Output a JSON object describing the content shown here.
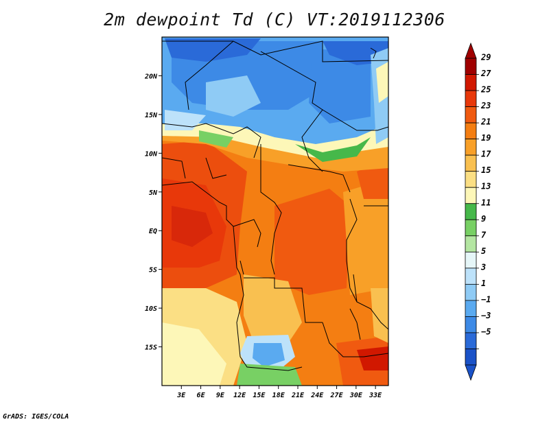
{
  "title": "2m dewpoint Td (C) VT:2019112306",
  "credit": "GrADS: IGES/COLA",
  "map": {
    "lat_labels": [
      "20N",
      "15N",
      "10N",
      "5N",
      "EQ",
      "5S",
      "10S",
      "15S"
    ],
    "lat_values": [
      20,
      15,
      10,
      5,
      0,
      -5,
      -10,
      -15
    ],
    "lon_labels": [
      "3E",
      "6E",
      "9E",
      "12E",
      "15E",
      "18E",
      "21E",
      "24E",
      "27E",
      "30E",
      "33E"
    ],
    "lon_values": [
      3,
      6,
      9,
      12,
      15,
      18,
      21,
      24,
      27,
      30,
      33
    ],
    "lon_range": [
      0,
      35
    ],
    "lat_range": [
      -20,
      25
    ]
  },
  "colorbar": {
    "labels": [
      "29",
      "27",
      "25",
      "23",
      "21",
      "19",
      "17",
      "15",
      "13",
      "11",
      "9",
      "7",
      "5",
      "3",
      "1",
      "−1",
      "−3",
      "−5"
    ],
    "colors": [
      "#a00000",
      "#d11800",
      "#e8380a",
      "#f05a10",
      "#f47e12",
      "#f8a028",
      "#f9c050",
      "#fbdf84",
      "#fdf7b8",
      "#46b84a",
      "#78d064",
      "#b4e6a2",
      "#e6f6f8",
      "#bde2fa",
      "#8fcbf5",
      "#5aaaf0",
      "#3d8ae6",
      "#2a6ad8",
      "#1a52c8"
    ],
    "bottom_color": "#1a52c8",
    "top_color": "#a00000"
  }
}
